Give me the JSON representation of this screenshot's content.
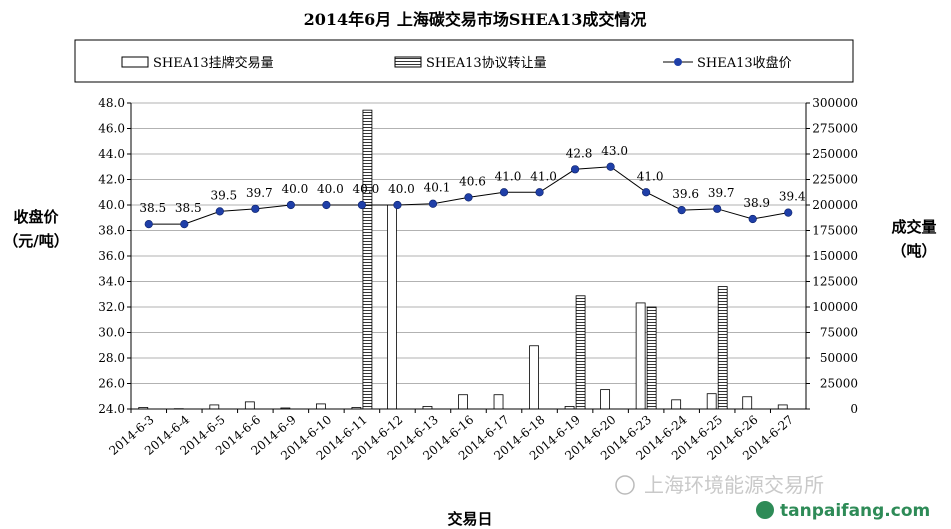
{
  "chart_data": {
    "type": "bar",
    "title": "2014年6月  上海碳交易市场SHEA13成交情况",
    "xlabel": "交易日",
    "ylabel_left": [
      "收盘价",
      "（元/吨）"
    ],
    "ylabel_right": [
      "成交量",
      "（吨）"
    ],
    "ylim_left": [
      24.0,
      48.0
    ],
    "ylim_right": [
      0,
      300000
    ],
    "yticks_left": [
      "24.0",
      "26.0",
      "28.0",
      "30.0",
      "32.0",
      "34.0",
      "36.0",
      "38.0",
      "40.0",
      "42.0",
      "44.0",
      "46.0",
      "48.0"
    ],
    "yticks_right": [
      "0",
      "25000",
      "50000",
      "75000",
      "100000",
      "125000",
      "150000",
      "175000",
      "200000",
      "225000",
      "250000",
      "275000",
      "300000"
    ],
    "grid": true,
    "legend_placement": "top",
    "categories": [
      "2014-6-3",
      "2014-6-4",
      "2014-6-5",
      "2014-6-6",
      "2014-6-9",
      "2014-6-10",
      "2014-6-11",
      "2014-6-12",
      "2014-6-13",
      "2014-6-16",
      "2014-6-17",
      "2014-6-18",
      "2014-6-19",
      "2014-6-20",
      "2014-6-23",
      "2014-6-24",
      "2014-6-25",
      "2014-6-26",
      "2014-6-27"
    ],
    "series": [
      {
        "name": "SHEA13挂牌交易量",
        "kind": "bar-plain",
        "axis": "right",
        "values": [
          1500,
          300,
          4000,
          7000,
          1000,
          5000,
          1500,
          200000,
          2500,
          14000,
          14000,
          62000,
          2500,
          19000,
          104000,
          9000,
          15000,
          12000,
          4000
        ]
      },
      {
        "name": "SHEA13协议转让量",
        "kind": "bar-hatched",
        "axis": "right",
        "values": [
          0,
          0,
          0,
          0,
          0,
          0,
          293000,
          0,
          0,
          0,
          0,
          0,
          111000,
          0,
          100000,
          0,
          120000,
          0,
          0
        ]
      },
      {
        "name": "SHEA13收盘价",
        "kind": "line",
        "axis": "left",
        "values": [
          38.5,
          38.5,
          39.5,
          39.7,
          40.0,
          40.0,
          40.0,
          40.0,
          40.1,
          40.6,
          41.0,
          41.0,
          42.8,
          43.0,
          41.0,
          39.6,
          39.7,
          38.9,
          39.4
        ],
        "labels": [
          "38.5",
          "38.5",
          "39.5",
          "39.7",
          "40.0",
          "40.0",
          "40.0",
          "40.0",
          "40.1",
          "40.6",
          "41.0",
          "41.0",
          "42.8",
          "43.0",
          "41.0",
          "39.6",
          "39.7",
          "38.9",
          "39.4"
        ]
      }
    ]
  },
  "watermarks": {
    "cn": "上海环境能源交易所",
    "url": "tanpaifang.com"
  },
  "colors": {
    "line": "#000000",
    "marker": "#1f3fa8",
    "grid": "#999999",
    "watermark": "#2e8b57"
  }
}
